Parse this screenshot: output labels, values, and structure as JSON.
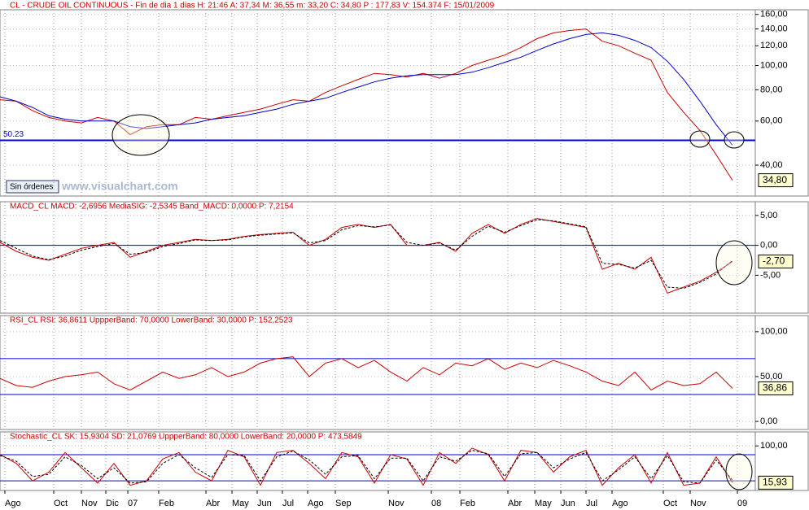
{
  "header": "CL - CRUDE OIL CONTINUOUS - Fin de dia 1 dias H: 21:46 A: 37,34 M: 36,55 m: 33,20 C: 34,80 P : 177,83 V: 154.374 F: 15/01/2009",
  "button": "Sin órdenes",
  "watermark": "www.visualchart.com",
  "chart_data": [
    {
      "type": "line",
      "log_scale": true,
      "grid": true,
      "xlim": [
        0,
        46.4
      ],
      "ylim": [
        30.1,
        167
      ],
      "yticks": [
        {
          "value": 40,
          "label": "40,00"
        },
        {
          "value": 60,
          "label": "60,00"
        },
        {
          "value": 80,
          "label": "80,00"
        },
        {
          "value": 100,
          "label": "100,00"
        },
        {
          "value": 120,
          "label": "120,00"
        },
        {
          "value": 140,
          "label": "140,00"
        },
        {
          "value": 160,
          "label": "160,00"
        }
      ],
      "series": [
        {
          "color": "#cc0000",
          "values": [
            73,
            72,
            66,
            62,
            60,
            59,
            62,
            60,
            53,
            57,
            58,
            58,
            62,
            61,
            63,
            65,
            67,
            70,
            73,
            72,
            78,
            83,
            88,
            93,
            92,
            90,
            93,
            89,
            93,
            100,
            105,
            110,
            118,
            128,
            135,
            138,
            140,
            125,
            120,
            112,
            105,
            78,
            65,
            55,
            44,
            34.8
          ]
        },
        {
          "color": "#0000cc",
          "values": [
            75,
            72,
            68,
            63,
            61,
            60,
            60,
            60,
            57,
            56,
            57,
            58,
            59,
            61,
            62,
            63,
            65,
            67,
            70,
            72,
            74,
            78,
            82,
            86,
            89,
            91,
            92,
            92,
            92,
            94,
            98,
            103,
            108,
            115,
            122,
            128,
            133,
            135,
            132,
            126,
            118,
            104,
            88,
            72,
            58,
            48
          ]
        }
      ],
      "hlines": [
        50.23
      ],
      "hline_color": "#0000cc",
      "current": {
        "value": 34.8,
        "label": "34,80"
      }
    },
    {
      "type": "line",
      "grid": true,
      "title": "MACD_CL MACD: -2,6956 MediaSIG: -2,5345 Band_MACD: 0,0000 P: 7,2154",
      "xlim": [
        0,
        46.4
      ],
      "ylim": [
        -11.35,
        7.3
      ],
      "yticks": [
        {
          "value": -5,
          "label": "-5,00"
        },
        {
          "value": 0,
          "label": "0,00"
        },
        {
          "value": 5,
          "label": "5,00"
        }
      ],
      "series": [
        {
          "color": "#cc0000",
          "values": [
            0.5,
            -1,
            -2,
            -2.5,
            -1.5,
            -0.5,
            0,
            0.5,
            -2,
            -1,
            0,
            0.5,
            1,
            0.8,
            1,
            1.5,
            1.8,
            2,
            2.2,
            0,
            1,
            3,
            3.5,
            3,
            3.5,
            0,
            0,
            0.5,
            -1,
            2,
            3.5,
            2,
            3.5,
            4.5,
            4,
            3.5,
            3,
            -4,
            -3,
            -4,
            -2,
            -8,
            -7,
            -6,
            -4.5,
            -2.6956
          ]
        },
        {
          "color": "#000000",
          "dashed": true,
          "values": [
            0.8,
            -0.5,
            -1.8,
            -2.4,
            -1.8,
            -0.8,
            -0.2,
            0.3,
            -1.5,
            -1.2,
            -0.2,
            0.3,
            0.9,
            0.8,
            0.9,
            1.4,
            1.7,
            1.9,
            2.1,
            0.4,
            0.8,
            2.6,
            3.3,
            3.1,
            3.4,
            0.5,
            0,
            0.4,
            -0.8,
            1.5,
            3.2,
            2.2,
            3.3,
            4.3,
            4.1,
            3.6,
            3.1,
            -3,
            -3.2,
            -3.8,
            -2.5,
            -7,
            -7.2,
            -6.2,
            -4.8,
            -2.5345
          ]
        }
      ],
      "hlines": [
        0
      ],
      "hline_color": "#0000cc",
      "current": {
        "value": -2.7,
        "label": "-2,70"
      }
    },
    {
      "type": "line",
      "grid": true,
      "title": "RSI_CL RSI: 36,8611 UppperBand: 70,0000 LowerBand: 30,0000 P: 152,2523",
      "xlim": [
        0,
        46.4
      ],
      "ylim": [
        -9,
        118
      ],
      "yticks": [
        {
          "value": 0,
          "label": "0,00"
        },
        {
          "value": 50,
          "label": "50,00"
        },
        {
          "value": 100,
          "label": "100,00"
        }
      ],
      "series": [
        {
          "color": "#cc0000",
          "values": [
            48,
            40,
            38,
            45,
            50,
            52,
            55,
            42,
            35,
            45,
            55,
            48,
            52,
            60,
            50,
            55,
            65,
            70,
            72,
            50,
            65,
            70,
            60,
            68,
            55,
            45,
            60,
            52,
            65,
            62,
            70,
            58,
            65,
            60,
            68,
            62,
            55,
            45,
            40,
            55,
            35,
            45,
            40,
            42,
            55,
            36.86
          ]
        }
      ],
      "hlines": [
        70,
        30
      ],
      "hline_color": "#0000cc",
      "current": {
        "value": 36.86,
        "label": "36,86"
      }
    },
    {
      "type": "line",
      "grid": true,
      "title": "Stochastic_CL SK: 15,9304 SD: 21,0769 UppperBand: 80,0000 LowerBand: 20,0000 P: 473,5849",
      "xlim": [
        0,
        46.4
      ],
      "ylim": [
        -2,
        132
      ],
      "yticks": [
        {
          "value": 100,
          "label": "100,00"
        }
      ],
      "xticks": [
        {
          "value": 0.3,
          "label": "Ago"
        },
        {
          "value": 3.3,
          "label": "Oct"
        },
        {
          "value": 5,
          "label": "Nov"
        },
        {
          "value": 6.5,
          "label": "Dic"
        },
        {
          "value": 7.85,
          "label": "07"
        },
        {
          "value": 9.75,
          "label": "Feb"
        },
        {
          "value": 12.65,
          "label": "Abr"
        },
        {
          "value": 14.25,
          "label": "May"
        },
        {
          "value": 15.8,
          "label": "Jun"
        },
        {
          "value": 17.35,
          "label": "Jul"
        },
        {
          "value": 18.9,
          "label": "Ago"
        },
        {
          "value": 20.6,
          "label": "Sep"
        },
        {
          "value": 23.85,
          "label": "Nov"
        },
        {
          "value": 26.5,
          "label": "08"
        },
        {
          "value": 28.25,
          "label": "Feb"
        },
        {
          "value": 31.2,
          "label": "Abr"
        },
        {
          "value": 32.85,
          "label": "May"
        },
        {
          "value": 34.45,
          "label": "Jun"
        },
        {
          "value": 36,
          "label": "Jul"
        },
        {
          "value": 37.6,
          "label": "Ago"
        },
        {
          "value": 40.75,
          "label": "Oct"
        },
        {
          "value": 42.4,
          "label": "Nov"
        },
        {
          "value": 45.3,
          "label": "09"
        }
      ],
      "series": [
        {
          "color": "#cc0000",
          "values": [
            80,
            60,
            20,
            40,
            85,
            50,
            15,
            60,
            10,
            20,
            70,
            85,
            40,
            20,
            90,
            75,
            10,
            85,
            90,
            60,
            25,
            85,
            75,
            15,
            80,
            70,
            10,
            85,
            60,
            95,
            80,
            20,
            90,
            85,
            40,
            75,
            90,
            10,
            50,
            80,
            15,
            85,
            10,
            15,
            75,
            15.93
          ]
        },
        {
          "color": "#000000",
          "dashed": true,
          "values": [
            78,
            65,
            30,
            35,
            75,
            55,
            25,
            50,
            15,
            18,
            60,
            80,
            50,
            28,
            80,
            78,
            20,
            75,
            88,
            68,
            35,
            75,
            78,
            25,
            72,
            72,
            20,
            75,
            65,
            90,
            82,
            30,
            82,
            85,
            50,
            70,
            85,
            20,
            45,
            75,
            25,
            78,
            18,
            15,
            68,
            21.08
          ]
        }
      ],
      "hlines": [
        80,
        20
      ],
      "hline_color": "#0000cc",
      "current": {
        "value": 15.93,
        "label": "15,93"
      }
    }
  ]
}
